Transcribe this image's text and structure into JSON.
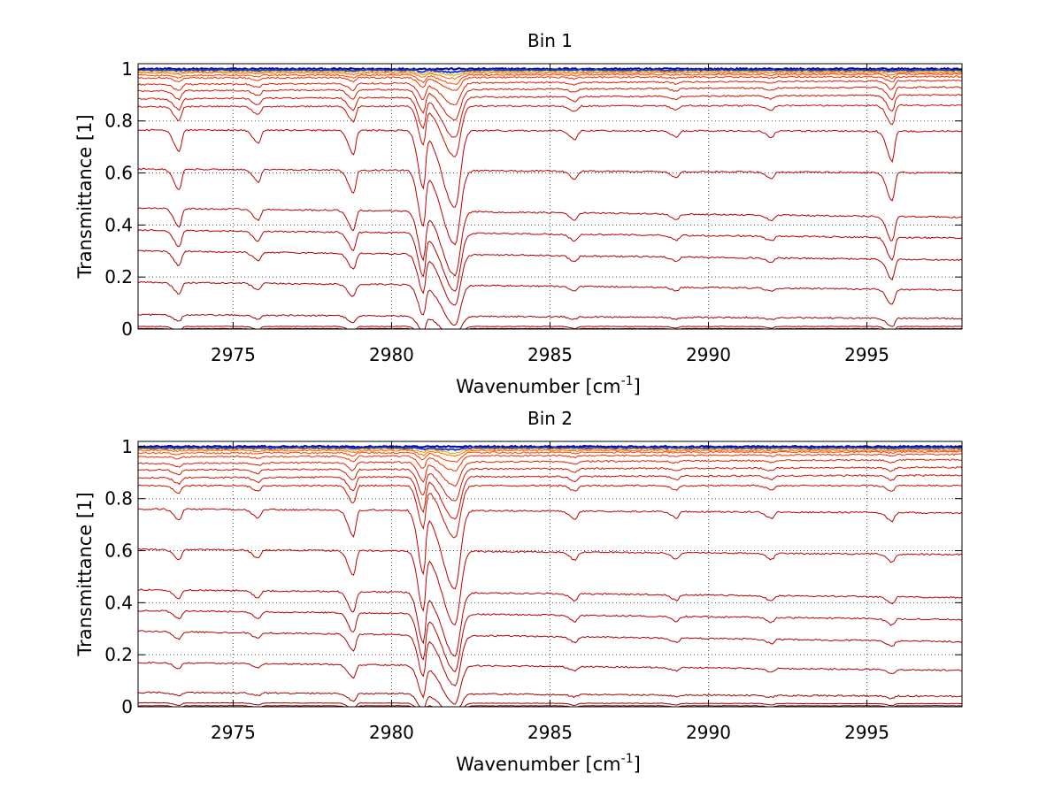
{
  "chart_data": [
    {
      "type": "line",
      "title": "Bin 1",
      "xlabel": "Wavenumber [cm",
      "xlabel_sup": "-1",
      "xlabel_end": "]",
      "ylabel": "Transmittance [1]",
      "xlim": [
        2972,
        2998
      ],
      "ylim": [
        0,
        1.02
      ],
      "grid": true,
      "xticks": [
        2975,
        2980,
        2985,
        2990,
        2995
      ],
      "xtick_labels": [
        "2975",
        "2980",
        "2985",
        "2990",
        "2995"
      ],
      "yticks": [
        0,
        0.2,
        0.4,
        0.6,
        0.8,
        1
      ],
      "ytick_labels": [
        "0",
        "0.2",
        "0.4",
        "0.6",
        "0.8",
        "1"
      ],
      "dips": [
        {
          "x": 2973.3,
          "depth": 0.1
        },
        {
          "x": 2975.8,
          "depth": 0.06
        },
        {
          "x": 2978.8,
          "depth": 0.11
        },
        {
          "x": 2981.0,
          "depth": 0.26
        },
        {
          "x": 2982.0,
          "depth": 0.36
        },
        {
          "x": 2985.8,
          "depth": 0.04
        },
        {
          "x": 2989.0,
          "depth": 0.03
        },
        {
          "x": 2992.0,
          "depth": 0.03
        },
        {
          "x": 2995.8,
          "depth": 0.14
        }
      ],
      "series": [
        {
          "start": 1.0,
          "end": 1.0,
          "color": "#0000b0"
        },
        {
          "start": 0.995,
          "end": 0.995,
          "color": "#2040c0"
        },
        {
          "start": 0.99,
          "end": 0.99,
          "color": "#e0a000"
        },
        {
          "start": 0.985,
          "end": 0.985,
          "color": "#ff6a00"
        },
        {
          "start": 0.975,
          "end": 0.98,
          "color": "#ff4000"
        },
        {
          "start": 0.965,
          "end": 0.97,
          "color": "#f03000"
        },
        {
          "start": 0.94,
          "end": 0.955,
          "color": "#e02000"
        },
        {
          "start": 0.915,
          "end": 0.93,
          "color": "#d01800"
        },
        {
          "start": 0.885,
          "end": 0.9,
          "color": "#d01000"
        },
        {
          "start": 0.855,
          "end": 0.86,
          "color": "#c81000"
        },
        {
          "start": 0.765,
          "end": 0.76,
          "color": "#c00000"
        },
        {
          "start": 0.615,
          "end": 0.6,
          "color": "#c00000"
        },
        {
          "start": 0.465,
          "end": 0.43,
          "color": "#b80000"
        },
        {
          "start": 0.38,
          "end": 0.35,
          "color": "#b80000"
        },
        {
          "start": 0.3,
          "end": 0.265,
          "color": "#b00000"
        },
        {
          "start": 0.18,
          "end": 0.15,
          "color": "#b00000"
        },
        {
          "start": 0.055,
          "end": 0.04,
          "color": "#a00000"
        },
        {
          "start": 0.01,
          "end": 0.01,
          "color": "#900000"
        },
        {
          "start": 0.002,
          "end": 0.002,
          "color": "#800000"
        }
      ]
    },
    {
      "type": "line",
      "title": "Bin 2",
      "xlabel": "Wavenumber [cm",
      "xlabel_sup": "-1",
      "xlabel_end": "]",
      "ylabel": "Transmittance [1]",
      "xlim": [
        2972,
        2998
      ],
      "ylim": [
        0,
        1.02
      ],
      "grid": true,
      "xticks": [
        2975,
        2980,
        2985,
        2990,
        2995
      ],
      "xtick_labels": [
        "2975",
        "2980",
        "2985",
        "2990",
        "2995"
      ],
      "yticks": [
        0,
        0.2,
        0.4,
        0.6,
        0.8,
        1
      ],
      "ytick_labels": [
        "0",
        "0.2",
        "0.4",
        "0.6",
        "0.8",
        "1"
      ],
      "dips": [
        {
          "x": 2973.3,
          "depth": 0.05
        },
        {
          "x": 2975.8,
          "depth": 0.04
        },
        {
          "x": 2978.8,
          "depth": 0.12
        },
        {
          "x": 2981.0,
          "depth": 0.28
        },
        {
          "x": 2982.0,
          "depth": 0.36
        },
        {
          "x": 2985.8,
          "depth": 0.04
        },
        {
          "x": 2989.0,
          "depth": 0.03
        },
        {
          "x": 2992.0,
          "depth": 0.03
        },
        {
          "x": 2995.8,
          "depth": 0.04
        }
      ],
      "series": [
        {
          "start": 1.0,
          "end": 1.0,
          "color": "#0000b0"
        },
        {
          "start": 0.995,
          "end": 0.995,
          "color": "#2040c0"
        },
        {
          "start": 0.99,
          "end": 0.99,
          "color": "#e0a000"
        },
        {
          "start": 0.985,
          "end": 0.985,
          "color": "#ff6a00"
        },
        {
          "start": 0.975,
          "end": 0.98,
          "color": "#ff4000"
        },
        {
          "start": 0.96,
          "end": 0.97,
          "color": "#f03000"
        },
        {
          "start": 0.935,
          "end": 0.95,
          "color": "#e02000"
        },
        {
          "start": 0.91,
          "end": 0.92,
          "color": "#d01800"
        },
        {
          "start": 0.88,
          "end": 0.89,
          "color": "#d01000"
        },
        {
          "start": 0.85,
          "end": 0.85,
          "color": "#c81000"
        },
        {
          "start": 0.76,
          "end": 0.745,
          "color": "#c00000"
        },
        {
          "start": 0.605,
          "end": 0.585,
          "color": "#c00000"
        },
        {
          "start": 0.45,
          "end": 0.42,
          "color": "#b80000"
        },
        {
          "start": 0.37,
          "end": 0.335,
          "color": "#b80000"
        },
        {
          "start": 0.29,
          "end": 0.25,
          "color": "#b00000"
        },
        {
          "start": 0.17,
          "end": 0.14,
          "color": "#b00000"
        },
        {
          "start": 0.055,
          "end": 0.04,
          "color": "#a00000"
        },
        {
          "start": 0.015,
          "end": 0.012,
          "color": "#900000"
        },
        {
          "start": 0.004,
          "end": 0.004,
          "color": "#800000"
        }
      ]
    }
  ]
}
